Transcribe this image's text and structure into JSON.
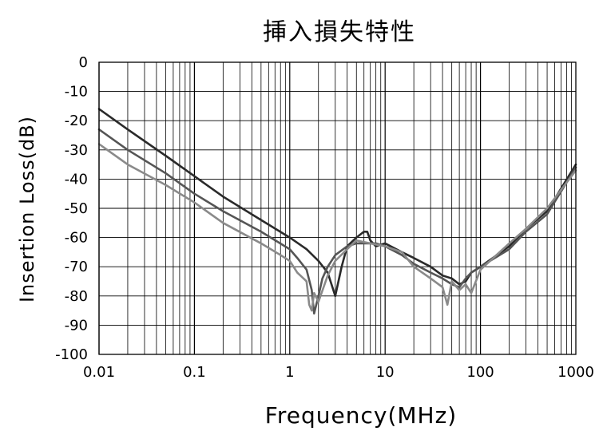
{
  "chart_data": {
    "type": "line",
    "title": "挿入損失特性",
    "xlabel": "Frequency(MHz)",
    "ylabel": "Insertion Loss(dB)",
    "x_scale": "log",
    "xlim": [
      0.01,
      1000
    ],
    "ylim": [
      -100,
      0
    ],
    "grid": true,
    "legend": "none",
    "x_ticks": [
      "0.01",
      "0.1",
      "1",
      "10",
      "100",
      "1000"
    ],
    "y_ticks": [
      "0",
      "-10",
      "-20",
      "-30",
      "-40",
      "-50",
      "-60",
      "-70",
      "-80",
      "-90",
      "-100"
    ],
    "colors": {
      "series_dark": "#2a2a2a",
      "series_mid": "#555555",
      "series_light": "#8a8a8a",
      "grid": "#000000"
    },
    "series": [
      {
        "color": "#2a2a2a",
        "x": [
          0.01,
          0.02,
          0.05,
          0.1,
          0.2,
          0.5,
          1,
          1.5,
          2,
          2.5,
          3,
          3.5,
          4,
          5,
          6,
          6.5,
          7,
          8,
          10,
          15,
          20,
          30,
          40,
          50,
          60,
          70,
          80,
          90,
          100,
          200,
          300,
          500,
          1000
        ],
        "y": [
          -16,
          -23,
          -32,
          -39,
          -46,
          -54,
          -60,
          -64,
          -68,
          -72,
          -80,
          -70,
          -63,
          -60,
          -58,
          -58,
          -61,
          -63,
          -62,
          -65,
          -67,
          -70,
          -73,
          -74,
          -76,
          -75,
          -72,
          -71,
          -70,
          -63,
          -57,
          -51,
          -35
        ]
      },
      {
        "color": "#555555",
        "x": [
          0.01,
          0.02,
          0.05,
          0.1,
          0.2,
          0.5,
          1,
          1.2,
          1.5,
          1.7,
          1.8,
          2,
          2.2,
          2.5,
          3,
          4,
          5,
          6,
          8,
          10,
          15,
          20,
          30,
          40,
          50,
          60,
          70,
          80,
          100,
          200,
          300,
          500,
          1000
        ],
        "y": [
          -23,
          -30,
          -38,
          -45,
          -51,
          -58,
          -64,
          -67,
          -71,
          -78,
          -86,
          -80,
          -74,
          -70,
          -66,
          -63,
          -62,
          -62,
          -62,
          -63,
          -66,
          -69,
          -72,
          -74,
          -76,
          -77,
          -74,
          -72,
          -70,
          -64,
          -58,
          -52,
          -36
        ]
      },
      {
        "color": "#8a8a8a",
        "x": [
          0.01,
          0.02,
          0.05,
          0.1,
          0.2,
          0.5,
          0.8,
          1,
          1.2,
          1.5,
          1.6,
          1.7,
          1.8,
          2,
          2.5,
          3,
          4,
          5,
          7,
          10,
          15,
          20,
          30,
          40,
          45,
          50,
          60,
          70,
          80,
          100,
          200,
          300,
          500,
          1000
        ],
        "y": [
          -28,
          -35,
          -42,
          -48,
          -55,
          -62,
          -66,
          -68,
          -72,
          -75,
          -83,
          -85,
          -79,
          -82,
          -73,
          -68,
          -64,
          -61,
          -62,
          -63,
          -65,
          -70,
          -74,
          -77,
          -83,
          -75,
          -78,
          -76,
          -79,
          -71,
          -62,
          -57,
          -50,
          -37
        ]
      }
    ]
  }
}
